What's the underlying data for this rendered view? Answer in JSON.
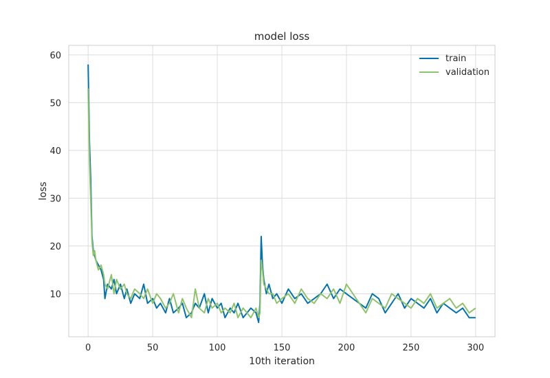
{
  "chart_data": {
    "type": "line",
    "title": "model loss",
    "xlabel": "10th iteration",
    "ylabel": "loss",
    "xlim": [
      -15,
      315
    ],
    "ylim": [
      1,
      62
    ],
    "xticks": [
      0,
      50,
      100,
      150,
      200,
      250,
      300
    ],
    "yticks": [
      10,
      20,
      30,
      40,
      50,
      60
    ],
    "grid": true,
    "legend_position": "top-right",
    "series": [
      {
        "name": "train",
        "color": "#0072b2",
        "x": [
          0,
          1,
          2,
          3,
          4,
          5,
          6,
          8,
          10,
          12,
          13,
          15,
          18,
          20,
          22,
          25,
          28,
          30,
          33,
          36,
          40,
          43,
          46,
          50,
          53,
          56,
          60,
          63,
          66,
          70,
          73,
          76,
          80,
          83,
          86,
          90,
          93,
          96,
          100,
          103,
          106,
          110,
          113,
          116,
          120,
          123,
          126,
          130,
          132,
          133,
          134,
          135,
          136,
          138,
          140,
          143,
          146,
          150,
          155,
          160,
          165,
          170,
          175,
          180,
          185,
          190,
          195,
          200,
          205,
          210,
          215,
          220,
          225,
          230,
          235,
          240,
          245,
          250,
          255,
          260,
          265,
          270,
          275,
          280,
          285,
          290,
          295,
          300
        ],
        "values": [
          58,
          42,
          34,
          22,
          19,
          18,
          17,
          16,
          15,
          13,
          9,
          12,
          11,
          13,
          10,
          12,
          9,
          11,
          8,
          10,
          9,
          12,
          8,
          9,
          7,
          8,
          6,
          9,
          6,
          7,
          8,
          5,
          6,
          8,
          7,
          10,
          6,
          9,
          7,
          8,
          5,
          7,
          6,
          8,
          5,
          6,
          7,
          6,
          4,
          8,
          22,
          16,
          13,
          10,
          12,
          9,
          10,
          8,
          11,
          9,
          10,
          8,
          9,
          10,
          12,
          9,
          11,
          10,
          9,
          8,
          7,
          10,
          9,
          6,
          8,
          10,
          7,
          9,
          8,
          7,
          9,
          6,
          8,
          7,
          6,
          7,
          5,
          5
        ]
      },
      {
        "name": "validation",
        "color": "#8fc36a",
        "x": [
          0,
          1,
          2,
          3,
          4,
          5,
          6,
          8,
          10,
          12,
          13,
          15,
          18,
          20,
          22,
          25,
          28,
          30,
          33,
          36,
          40,
          43,
          46,
          50,
          53,
          56,
          60,
          63,
          66,
          70,
          73,
          76,
          80,
          83,
          86,
          90,
          93,
          96,
          100,
          103,
          106,
          110,
          113,
          116,
          120,
          123,
          126,
          130,
          132,
          133,
          134,
          135,
          136,
          138,
          140,
          143,
          146,
          150,
          155,
          160,
          165,
          170,
          175,
          180,
          185,
          190,
          195,
          200,
          205,
          210,
          215,
          220,
          225,
          230,
          235,
          240,
          245,
          250,
          255,
          260,
          265,
          270,
          275,
          280,
          285,
          290,
          295,
          300
        ],
        "values": [
          53,
          38,
          30,
          21,
          18,
          19,
          17,
          15,
          16,
          14,
          12,
          11,
          14,
          10,
          13,
          11,
          12,
          10,
          9,
          11,
          10,
          9,
          11,
          8,
          10,
          9,
          7,
          8,
          10,
          6,
          9,
          7,
          5,
          11,
          7,
          6,
          9,
          7,
          8,
          6,
          7,
          6,
          8,
          5,
          7,
          6,
          5,
          7,
          5,
          6,
          17,
          15,
          12,
          11,
          10,
          10,
          8,
          9,
          10,
          8,
          11,
          9,
          8,
          10,
          9,
          11,
          8,
          12,
          10,
          8,
          6,
          9,
          8,
          7,
          10,
          9,
          8,
          7,
          9,
          8,
          10,
          7,
          8,
          9,
          7,
          8,
          6,
          7
        ]
      }
    ]
  }
}
